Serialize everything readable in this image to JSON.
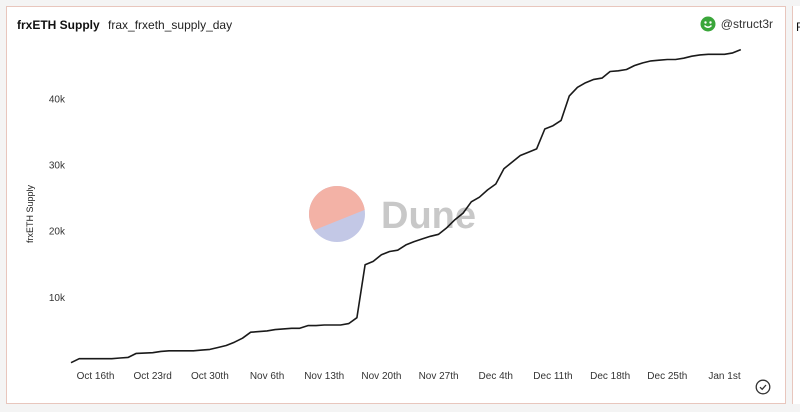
{
  "header": {
    "title": "frxETH Supply",
    "subtitle": "frax_frxeth_supply_day",
    "author": "@struct3r"
  },
  "right_card_title": "F",
  "watermark": "Dune",
  "colors": {
    "line": "#1a1a1a",
    "card_border": "#e8c6bd",
    "author_icon": "#3aa63a",
    "watermark_top": "#f3b2a6",
    "watermark_bottom": "#c3c8e6",
    "watermark_text": "#c8c8c8"
  },
  "chart_data": {
    "type": "line",
    "title": "frxETH Supply",
    "ylabel": "frxETH Supply",
    "xlabel": "",
    "ylim": [
      0,
      48500
    ],
    "yticks": [
      10000,
      20000,
      30000,
      40000
    ],
    "ytick_labels": [
      "10k",
      "20k",
      "30k",
      "40k"
    ],
    "xlim": [
      "2022-10-13",
      "2023-01-04"
    ],
    "xticks": [
      "2022-10-16",
      "2022-10-23",
      "2022-10-30",
      "2022-11-06",
      "2022-11-13",
      "2022-11-20",
      "2022-11-27",
      "2022-12-04",
      "2022-12-11",
      "2022-12-18",
      "2022-12-25",
      "2023-01-01"
    ],
    "xtick_labels": [
      "Oct 16th",
      "Oct 23rd",
      "Oct 30th",
      "Nov 6th",
      "Nov 13th",
      "Nov 20th",
      "Nov 27th",
      "Dec 4th",
      "Dec 11th",
      "Dec 18th",
      "Dec 25th",
      "Jan 1st"
    ],
    "grid": false,
    "series": [
      {
        "x": [
          "2022-10-13",
          "2022-10-14",
          "2022-10-15",
          "2022-10-16",
          "2022-10-17",
          "2022-10-18",
          "2022-10-19",
          "2022-10-20",
          "2022-10-21",
          "2022-10-22",
          "2022-10-23",
          "2022-10-24",
          "2022-10-25",
          "2022-10-26",
          "2022-10-27",
          "2022-10-28",
          "2022-10-29",
          "2022-10-30",
          "2022-10-31",
          "2022-11-01",
          "2022-11-02",
          "2022-11-03",
          "2022-11-04",
          "2022-11-05",
          "2022-11-06",
          "2022-11-07",
          "2022-11-08",
          "2022-11-09",
          "2022-11-10",
          "2022-11-11",
          "2022-11-12",
          "2022-11-13",
          "2022-11-14",
          "2022-11-15",
          "2022-11-16",
          "2022-11-17",
          "2022-11-18",
          "2022-11-19",
          "2022-11-20",
          "2022-11-21",
          "2022-11-22",
          "2022-11-23",
          "2022-11-24",
          "2022-11-25",
          "2022-11-26",
          "2022-11-27",
          "2022-11-28",
          "2022-11-29",
          "2022-11-30",
          "2022-12-01",
          "2022-12-02",
          "2022-12-03",
          "2022-12-04",
          "2022-12-05",
          "2022-12-06",
          "2022-12-07",
          "2022-12-08",
          "2022-12-09",
          "2022-12-10",
          "2022-12-11",
          "2022-12-12",
          "2022-12-13",
          "2022-12-14",
          "2022-12-15",
          "2022-12-16",
          "2022-12-17",
          "2022-12-18",
          "2022-12-19",
          "2022-12-20",
          "2022-12-21",
          "2022-12-22",
          "2022-12-23",
          "2022-12-24",
          "2022-12-25",
          "2022-12-26",
          "2022-12-27",
          "2022-12-28",
          "2022-12-29",
          "2022-12-30",
          "2022-12-31",
          "2023-01-01",
          "2023-01-02",
          "2023-01-03"
        ],
        "values": [
          200,
          800,
          800,
          800,
          800,
          800,
          900,
          1000,
          1600,
          1650,
          1700,
          1900,
          2000,
          2000,
          2000,
          2000,
          2100,
          2200,
          2500,
          2800,
          3300,
          3900,
          4800,
          4900,
          5000,
          5200,
          5300,
          5400,
          5400,
          5800,
          5800,
          5900,
          5900,
          5900,
          6100,
          7000,
          15000,
          15500,
          16500,
          17000,
          17200,
          18000,
          18500,
          18900,
          19300,
          19600,
          20600,
          21800,
          22800,
          24500,
          25200,
          26300,
          27200,
          29500,
          30500,
          31500,
          32000,
          32500,
          35500,
          36000,
          36800,
          40500,
          41800,
          42500,
          43000,
          43200,
          44200,
          44300,
          44500,
          45100,
          45500,
          45800,
          45900,
          46000,
          46000,
          46200,
          46500,
          46700,
          46800,
          46800,
          46800,
          47000,
          47500
        ]
      }
    ]
  }
}
